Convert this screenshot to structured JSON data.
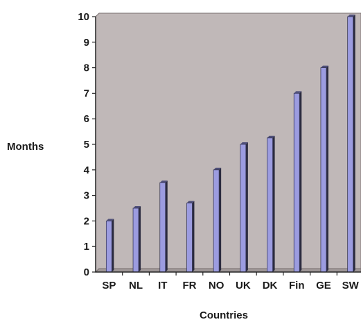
{
  "chart_data": {
    "type": "bar",
    "title": "",
    "xlabel": "Countries",
    "ylabel": "Months",
    "categories": [
      "SP",
      "NL",
      "IT",
      "FR",
      "NO",
      "UK",
      "DK",
      "Fin",
      "GE",
      "SW"
    ],
    "values": [
      2,
      2.5,
      3.5,
      2.7,
      4,
      5,
      5.25,
      7,
      8,
      10
    ],
    "ylim": [
      0,
      10
    ],
    "yticks": [
      0,
      1,
      2,
      3,
      4,
      5,
      6,
      7,
      8,
      9,
      10
    ],
    "grid": false,
    "legend": "none",
    "plot_background": "#c0b8b8",
    "bar_color": "#9c9ce0",
    "bar_shadow_color": "#2a2a3e"
  }
}
